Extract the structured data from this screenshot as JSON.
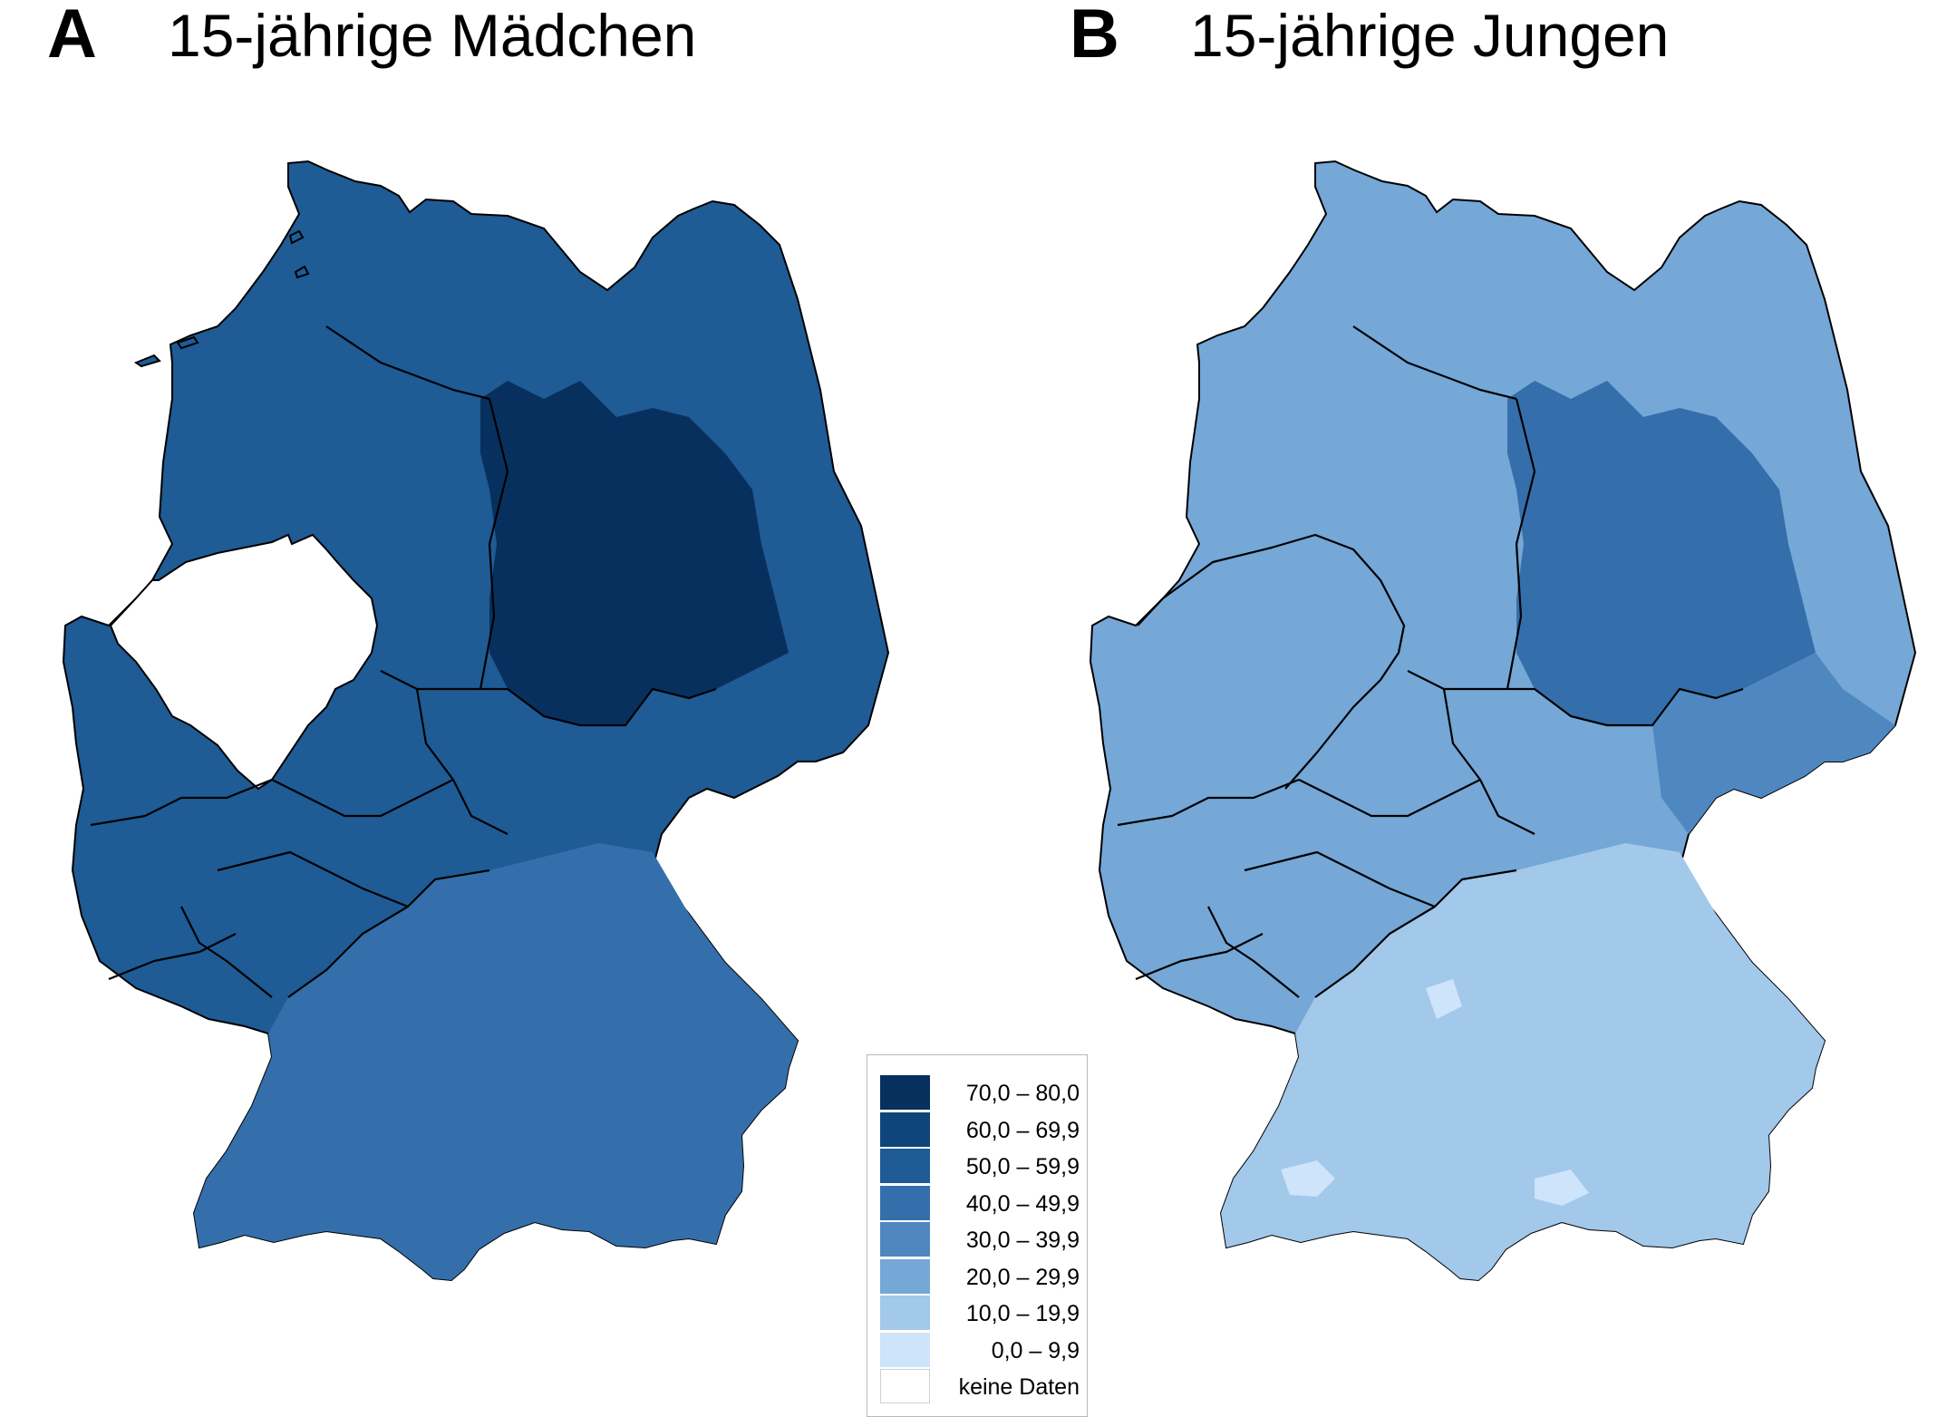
{
  "panels": [
    {
      "letter": "A",
      "title": "15-jährige Mädchen"
    },
    {
      "letter": "B",
      "title": "15-jährige Jungen"
    }
  ],
  "legend": [
    {
      "label": "70,0 – 80,0",
      "color": "#08305e"
    },
    {
      "label": "60,0 – 69,9",
      "color": "#0e467b"
    },
    {
      "label": "50,0 – 59,9",
      "color": "#1f5b95"
    },
    {
      "label": "40,0 – 49,9",
      "color": "#346fab"
    },
    {
      "label": "30,0 – 39,9",
      "color": "#4f88c0"
    },
    {
      "label": "20,0 – 29,9",
      "color": "#75a7d7"
    },
    {
      "label": "10,0 – 19,9",
      "color": "#a2c8ea"
    },
    {
      "label": "0,0 – 9,9",
      "color": "#cde4fb"
    },
    {
      "label": "keine Daten",
      "color": "#ffffff"
    }
  ],
  "map_fill": {
    "panel_a": {
      "north": "#1f5b95",
      "east": "#08305e",
      "east_outer": "#0e467b",
      "west": "#1f5b95",
      "center": "#1f5b95",
      "south": "#346fab",
      "no_data": "#ffffff"
    },
    "panel_b": {
      "north": "#75a7d7",
      "east": "#346fab",
      "east_outer": "#4f88c0",
      "west": "#75a7d7",
      "center": "#75a7d7",
      "south": "#a2c8ea",
      "nrw": "#75a7d7"
    }
  }
}
